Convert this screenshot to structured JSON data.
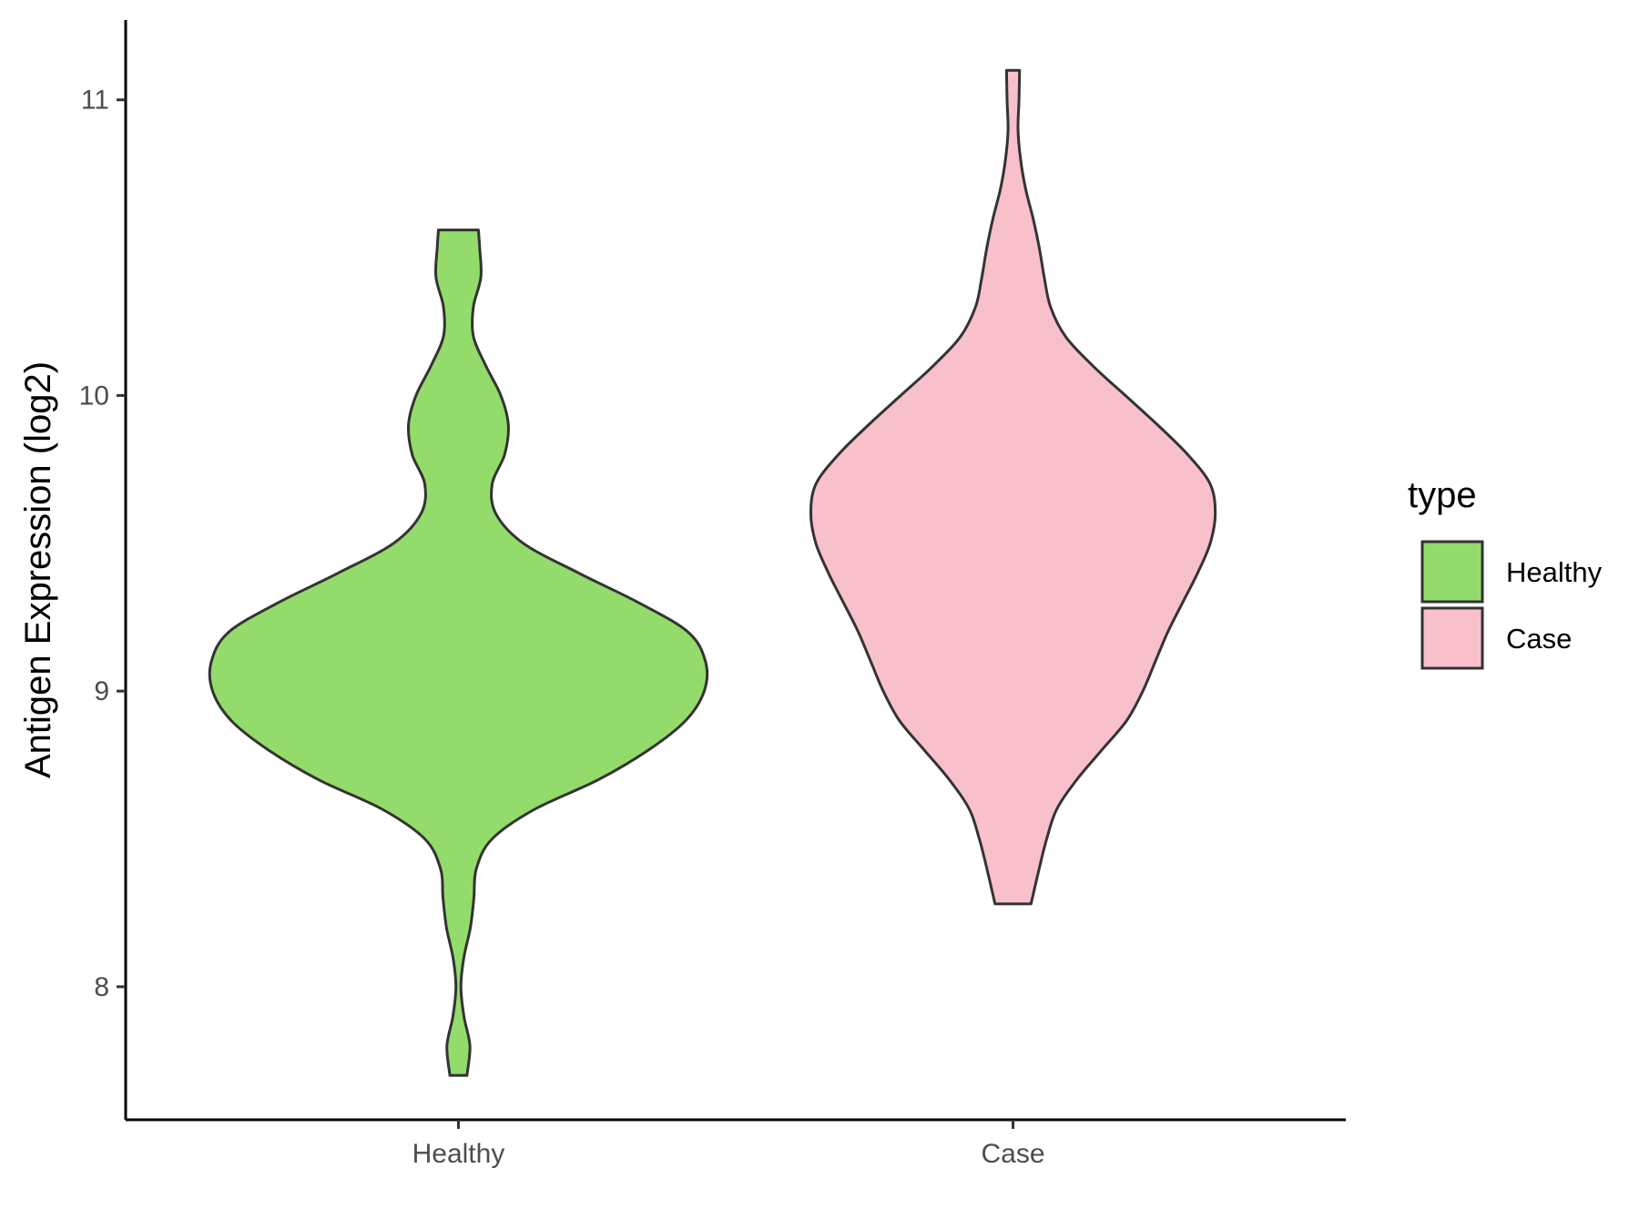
{
  "chart_data": {
    "type": "violin",
    "title": "",
    "xlabel": "",
    "ylabel": "Antigen Expression (log2)",
    "categories": [
      "Healthy",
      "Case"
    ],
    "ylim": [
      7.55,
      11.27
    ],
    "yticks": [
      8,
      9,
      10,
      11
    ],
    "grid": false,
    "legend": {
      "title": "type",
      "position": "right"
    },
    "series": [
      {
        "name": "Healthy",
        "color": "#93dc6b",
        "min": 7.7,
        "max": 10.56,
        "density": [
          [
            7.7,
            0.034
          ],
          [
            7.8,
            0.046
          ],
          [
            7.9,
            0.022
          ],
          [
            8.0,
            0.01
          ],
          [
            8.1,
            0.022
          ],
          [
            8.2,
            0.048
          ],
          [
            8.3,
            0.062
          ],
          [
            8.4,
            0.072
          ],
          [
            8.5,
            0.135
          ],
          [
            8.6,
            0.305
          ],
          [
            8.7,
            0.56
          ],
          [
            8.8,
            0.76
          ],
          [
            8.9,
            0.91
          ],
          [
            9.0,
            0.985
          ],
          [
            9.1,
            0.99
          ],
          [
            9.2,
            0.92
          ],
          [
            9.3,
            0.72
          ],
          [
            9.4,
            0.48
          ],
          [
            9.5,
            0.26
          ],
          [
            9.6,
            0.15
          ],
          [
            9.7,
            0.135
          ],
          [
            9.8,
            0.185
          ],
          [
            9.9,
            0.2
          ],
          [
            10.0,
            0.17
          ],
          [
            10.1,
            0.11
          ],
          [
            10.2,
            0.06
          ],
          [
            10.3,
            0.06
          ],
          [
            10.4,
            0.09
          ],
          [
            10.5,
            0.085
          ],
          [
            10.56,
            0.08
          ]
        ]
      },
      {
        "name": "Case",
        "color": "#f8c0cb",
        "min": 8.28,
        "max": 11.1,
        "density": [
          [
            8.28,
            0.072
          ],
          [
            8.4,
            0.105
          ],
          [
            8.5,
            0.135
          ],
          [
            8.6,
            0.175
          ],
          [
            8.7,
            0.255
          ],
          [
            8.8,
            0.355
          ],
          [
            8.9,
            0.455
          ],
          [
            9.0,
            0.52
          ],
          [
            9.1,
            0.57
          ],
          [
            9.2,
            0.62
          ],
          [
            9.3,
            0.68
          ],
          [
            9.4,
            0.74
          ],
          [
            9.5,
            0.79
          ],
          [
            9.6,
            0.81
          ],
          [
            9.7,
            0.79
          ],
          [
            9.8,
            0.7
          ],
          [
            9.9,
            0.58
          ],
          [
            10.0,
            0.45
          ],
          [
            10.1,
            0.32
          ],
          [
            10.2,
            0.21
          ],
          [
            10.3,
            0.15
          ],
          [
            10.4,
            0.125
          ],
          [
            10.5,
            0.105
          ],
          [
            10.6,
            0.08
          ],
          [
            10.7,
            0.05
          ],
          [
            10.8,
            0.03
          ],
          [
            10.9,
            0.02
          ],
          [
            11.0,
            0.024
          ],
          [
            11.1,
            0.026
          ]
        ]
      }
    ]
  }
}
